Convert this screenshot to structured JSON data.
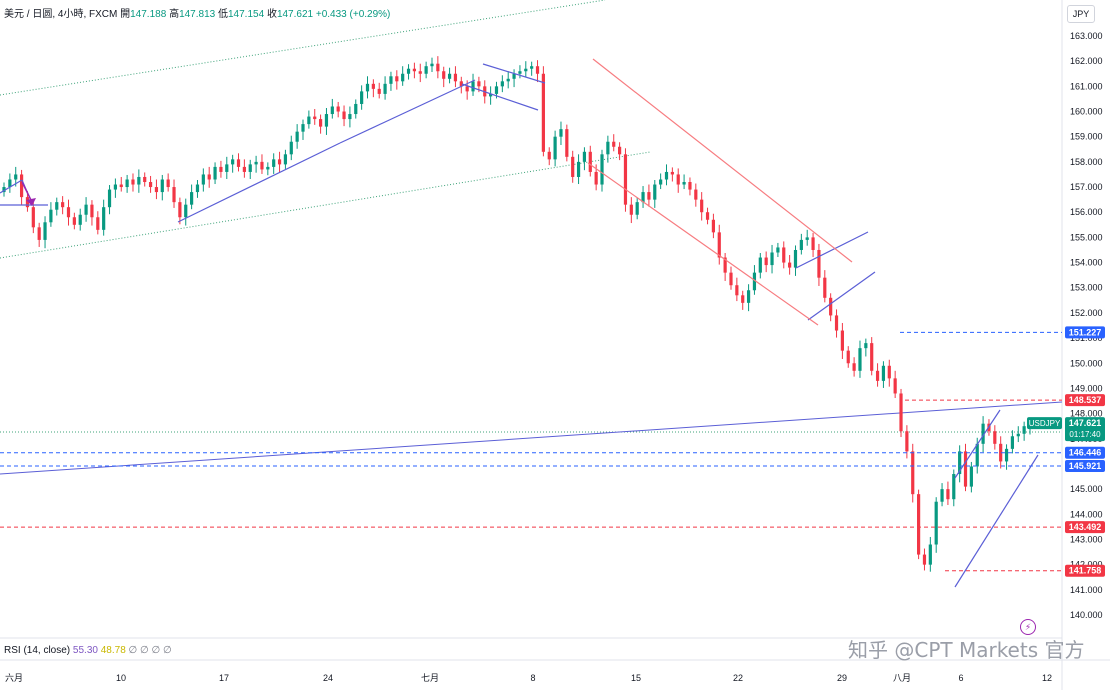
{
  "legend": {
    "symbol": "美元 / 日圆, 4小時, FXCM",
    "open_label": "開",
    "open": "147.188",
    "high_label": "高",
    "high": "147.813",
    "low_label": "低",
    "low": "147.154",
    "close_label": "收",
    "close": "147.621",
    "change": "+0.433 (+0.29%)"
  },
  "currency_button": "JPY",
  "rsi": {
    "label": "RSI (14, close)",
    "v1": "55.30",
    "v2": "48.78",
    "rest": "∅ ∅ ∅ ∅"
  },
  "watermark": "知乎 @CPT Markets 官方",
  "colors": {
    "up": "#089981",
    "down": "#f23645",
    "trend": "#6a5acd",
    "channel": "#f77c80",
    "dotted": "#3fa37a"
  },
  "chart_data": {
    "type": "candlestick",
    "symbol": "USDJPY",
    "ylim": [
      140,
      163.5
    ],
    "y_ticks": [
      "140.000",
      "141.000",
      "142.000",
      "143.000",
      "144.000",
      "145.000",
      "146.000",
      "147.000",
      "148.000",
      "149.000",
      "150.000",
      "151.000",
      "152.000",
      "153.000",
      "154.000",
      "155.000",
      "156.000",
      "157.000",
      "158.000",
      "159.000",
      "160.000",
      "161.000",
      "162.000",
      "163.000"
    ],
    "x_ticks": [
      "六月",
      "10",
      "17",
      "24",
      "七月",
      "8",
      "15",
      "22",
      "29",
      "八月",
      "6",
      "12"
    ],
    "series": [
      {
        "values": [
          157.0,
          157.3,
          157.5,
          156.6,
          156.2,
          155.4,
          154.9,
          155.6,
          156.1,
          156.4,
          156.2,
          155.8,
          155.5,
          155.9,
          156.3,
          155.8,
          155.3,
          156.2,
          156.9,
          157.1,
          157.0,
          157.3,
          157.1,
          157.4,
          157.2,
          157.0,
          156.8,
          157.3,
          157.0,
          156.4,
          155.8,
          156.3,
          156.8,
          157.1,
          157.5,
          157.3,
          157.8,
          157.6,
          157.9,
          158.1,
          157.8,
          157.6,
          157.9,
          158.0,
          157.7,
          157.8,
          158.1,
          157.9,
          158.3,
          158.8,
          159.2,
          159.5,
          159.8,
          159.7,
          159.4,
          159.9,
          160.2,
          160.0,
          159.7,
          159.9,
          160.3,
          160.8,
          161.1,
          160.9,
          160.7,
          161.1,
          161.4,
          161.2,
          161.5,
          161.7,
          161.6,
          161.5,
          161.8,
          161.9,
          161.6,
          161.3,
          161.5,
          161.2,
          161.0,
          160.8,
          161.2,
          161.0,
          160.6,
          160.7,
          161.0,
          161.2,
          161.3,
          161.5,
          161.6,
          161.7,
          161.8,
          161.5,
          158.4,
          158.1,
          159.0,
          159.3,
          158.2,
          157.4,
          158.0,
          158.4,
          157.6,
          157.1,
          158.3,
          158.8,
          158.6,
          158.3,
          156.3,
          155.9,
          156.4,
          156.8,
          156.5,
          157.1,
          157.3,
          157.6,
          157.5,
          157.1,
          157.2,
          156.9,
          156.5,
          156.0,
          155.7,
          155.2,
          154.2,
          153.6,
          153.1,
          152.7,
          152.4,
          152.9,
          153.6,
          154.2,
          153.9,
          154.4,
          154.6,
          154.0,
          153.8,
          154.5,
          154.9,
          155.0,
          154.5,
          153.4,
          152.6,
          151.9,
          151.3,
          150.5,
          150.0,
          149.7,
          150.6,
          150.8,
          149.7,
          149.3,
          149.9,
          149.4,
          148.8,
          147.3,
          146.5,
          144.8,
          142.4,
          142.0,
          142.8,
          144.5,
          145.0,
          144.6,
          145.6,
          146.5,
          145.1,
          145.9,
          146.8,
          147.6,
          147.3,
          146.8,
          146.1,
          146.6,
          147.1,
          147.2,
          147.5,
          147.6
        ]
      }
    ]
  },
  "price_tags": [
    {
      "price": "151.227",
      "color": "#2962ff",
      "label": "151.227"
    },
    {
      "price": "148.537",
      "color": "#f23645",
      "label": "148.537"
    },
    {
      "price": "147.621",
      "color": "#089981",
      "label": "147.621",
      "symbol": "USDJPY",
      "countdown": "01:17:40"
    },
    {
      "price": "146.446",
      "color": "#2962ff",
      "label": "146.446"
    },
    {
      "price": "145.921",
      "color": "#2962ff",
      "label": "145.921"
    },
    {
      "price": "143.492",
      "color": "#f23645",
      "label": "143.492"
    },
    {
      "price": "141.758",
      "color": "#f23645",
      "label": "141.758"
    }
  ]
}
